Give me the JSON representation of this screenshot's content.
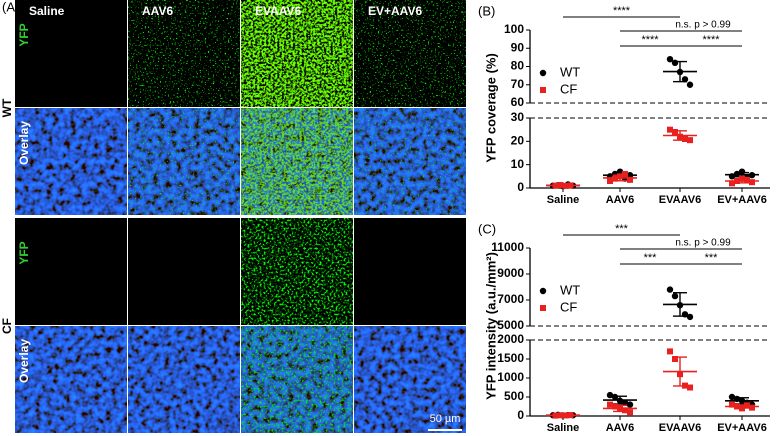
{
  "figure": {
    "panel_label": "(A)",
    "columns": [
      "Saline",
      "AAV6",
      "EVAAV6",
      "EV+AAV6"
    ],
    "groups": [
      "WT",
      "CF"
    ],
    "channels": [
      "YFP",
      "Overlay"
    ],
    "scale_bar": "50 µm"
  },
  "chart_data": [
    {
      "type": "scatter",
      "panel_label": "(B)",
      "ylabel": "YFP coverage (%)",
      "categories": [
        "Saline",
        "AAV6",
        "EVAAV6",
        "EV+AAV6"
      ],
      "ylim": [
        0,
        100
      ],
      "ybreak": [
        30,
        60
      ],
      "yticks": [
        0,
        10,
        20,
        30,
        60,
        70,
        80,
        90,
        100
      ],
      "legend": "upper left",
      "series": [
        {
          "name": "WT",
          "color": "#000000",
          "marker": "circle",
          "points": [
            [
              1,
              1.2,
              0.8,
              1.5,
              1
            ],
            [
              5,
              6,
              7,
              4,
              5.5
            ],
            [
              84,
              82,
              77,
              73,
              70
            ],
            [
              5,
              6,
              7,
              4.5,
              5.5
            ]
          ],
          "mean": [
            1.1,
            5.5,
            77.2,
            5.7
          ],
          "sd": [
            0.3,
            1.1,
            5.5,
            0.9
          ]
        },
        {
          "name": "CF",
          "color": "#e8201f",
          "marker": "square",
          "points": [
            [
              1,
              1.3,
              0.9,
              1.1
            ],
            [
              3,
              4,
              5,
              6,
              3.5
            ],
            [
              25,
              24,
              22,
              21,
              20.5
            ],
            [
              2,
              3,
              4,
              3.5,
              2.5
            ]
          ],
          "mean": [
            1.1,
            4.3,
            22.5,
            3
          ],
          "sd": [
            0.2,
            1.2,
            2,
            0.8
          ]
        }
      ],
      "annotations": [
        "****",
        "n.s. p > 0.99",
        "****",
        "****"
      ]
    },
    {
      "type": "scatter",
      "panel_label": "(C)",
      "ylabel": "YFP intensity (a.u./mm²)",
      "categories": [
        "Saline",
        "AAV6",
        "EVAAV6",
        "EV+AAV6"
      ],
      "ylim": [
        0,
        11000
      ],
      "ybreak": [
        2000,
        5000
      ],
      "yticks": [
        0,
        500,
        1000,
        1500,
        2000,
        5000,
        7000,
        9000,
        11000
      ],
      "legend": "upper left",
      "series": [
        {
          "name": "WT",
          "color": "#000000",
          "marker": "circle",
          "points": [
            [
              20,
              30,
              15,
              25,
              20
            ],
            [
              550,
              500,
              400,
              350,
              300
            ],
            [
              7800,
              7300,
              6600,
              5900,
              5700
            ],
            [
              500,
              450,
              400,
              350,
              300
            ]
          ],
          "mean": [
            22,
            420,
            6660,
            400
          ],
          "sd": [
            6,
            100,
            900,
            80
          ]
        },
        {
          "name": "CF",
          "color": "#e8201f",
          "marker": "square",
          "points": [
            [
              10,
              20,
              15,
              25
            ],
            [
              300,
              250,
              200,
              150,
              100
            ],
            [
              1700,
              1500,
              1100,
              800,
              750
            ],
            [
              300,
              250,
              200,
              280,
              220
            ]
          ],
          "mean": [
            17,
            200,
            1170,
            250
          ],
          "sd": [
            6,
            80,
            380,
            40
          ]
        }
      ],
      "annotations": [
        "***",
        "n.s. p > 0.99",
        "***",
        "***"
      ]
    }
  ]
}
